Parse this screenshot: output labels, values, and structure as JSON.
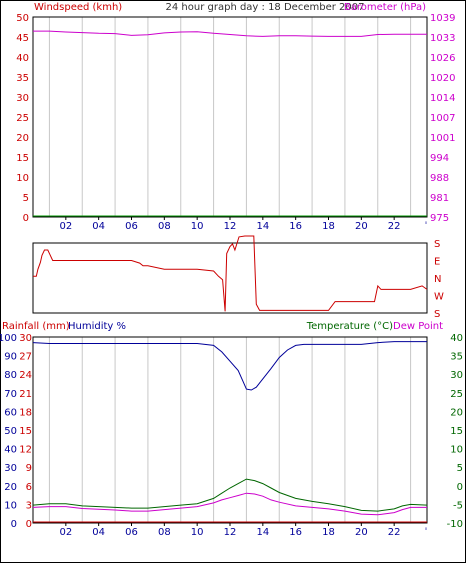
{
  "title": "24 hour graph day : 18 December 2007",
  "colors": {
    "windspeed": "#cc0000",
    "barometer": "#cc00cc",
    "humidity": "#000099",
    "temperature": "#006600",
    "dew_point": "#cc00cc",
    "rainfall": "#cc0000",
    "wind_direction": "#cc0000",
    "wind_trace": "#009900",
    "grid": "#c8c8c8",
    "frame": "#000000"
  },
  "x_ticks": [
    "02",
    "04",
    "06",
    "08",
    "10",
    "12",
    "14",
    "16",
    "18",
    "20",
    "22"
  ],
  "chart_data": [
    {
      "type": "line",
      "title": "24 hour graph day : 18 December 2007",
      "grid": true,
      "x_label": "",
      "left_axis": {
        "label": "Windspeed (kmh)",
        "range": [
          0,
          50
        ],
        "ticks": [
          "50",
          "45",
          "40",
          "35",
          "30",
          "25",
          "20",
          "15",
          "10",
          "5",
          "0"
        ]
      },
      "right_axis": {
        "label": "Barometer (hPa)",
        "range": [
          975,
          1039
        ],
        "ticks": [
          "1039",
          "1033",
          "1026",
          "1020",
          "1014",
          "1007",
          "1001",
          "994",
          "988",
          "981",
          "975"
        ]
      },
      "series": [
        {
          "name": "Windspeed (kmh)",
          "axis": "left",
          "x": [
            0,
            24
          ],
          "y": [
            0,
            0
          ]
        },
        {
          "name": "Barometer (hPa)",
          "axis": "right",
          "x": [
            0,
            1,
            2,
            3,
            4,
            5,
            6,
            7,
            8,
            9,
            10,
            11,
            12,
            13,
            14,
            15,
            16,
            17,
            18,
            19,
            20,
            21,
            22,
            23,
            24
          ],
          "y": [
            1034.5,
            1034.5,
            1034.2,
            1034.0,
            1033.8,
            1033.7,
            1033.1,
            1033.3,
            1033.9,
            1034.2,
            1034.3,
            1033.8,
            1033.4,
            1033.0,
            1032.8,
            1033.0,
            1033.0,
            1032.9,
            1032.8,
            1032.8,
            1032.8,
            1033.4,
            1033.5,
            1033.5,
            1033.5
          ]
        }
      ]
    },
    {
      "type": "line",
      "title": "",
      "grid": false,
      "left_axis": null,
      "right_axis": {
        "label": "",
        "categories": [
          "S",
          "E",
          "N",
          "W",
          "S"
        ]
      },
      "series": [
        {
          "name": "",
          "x": [
            0,
            0.2,
            0.3,
            0.45,
            0.55,
            0.7,
            0.9,
            1.2,
            2,
            4,
            6,
            6.5,
            6.7,
            7,
            8,
            9,
            10,
            11,
            11.3,
            11.55,
            11.7,
            11.8,
            12.0,
            12.15,
            12.3,
            12.55,
            12.9,
            13.15,
            13.45,
            13.6,
            13.8,
            14,
            16,
            18,
            18.4,
            19,
            20,
            20.8,
            21,
            21.2,
            22,
            23,
            23.7,
            24
          ],
          "y": [
            2.1,
            2.1,
            2.5,
            2.9,
            3.3,
            3.6,
            3.6,
            3.0,
            3.0,
            3.0,
            3.0,
            2.85,
            2.7,
            2.7,
            2.5,
            2.5,
            2.5,
            2.4,
            2.1,
            1.9,
            0.1,
            3.4,
            3.8,
            3.95,
            3.6,
            4.35,
            4.4,
            4.4,
            4.4,
            0.5,
            0.15,
            0.15,
            0.15,
            0.15,
            0.65,
            0.65,
            0.65,
            0.65,
            1.55,
            1.35,
            1.35,
            1.35,
            1.55,
            1.35
          ]
        }
      ]
    },
    {
      "type": "line",
      "title": "",
      "grid": true,
      "left_axis_rainfall": {
        "label": "Rainfall (mm)",
        "range": [
          0,
          30
        ],
        "ticks": [
          "30",
          "27",
          "24",
          "21",
          "18",
          "15",
          "12",
          "9",
          "6",
          "3",
          "0"
        ]
      },
      "left_axis_humidity": {
        "label": "Humidity %",
        "range": [
          0,
          100
        ],
        "ticks": [
          "100",
          "90",
          "80",
          "70",
          "60",
          "50",
          "40",
          "30",
          "20",
          "10",
          "0"
        ]
      },
      "right_axis": {
        "label": "Temperature (°C)",
        "range": [
          -10,
          40
        ],
        "ticks": [
          "40",
          "35",
          "30",
          "25",
          "20",
          "15",
          "10",
          "5",
          "0",
          "-5",
          "-10"
        ]
      },
      "right_axis_title_2": "Dew Point",
      "series": [
        {
          "name": "Humidity %",
          "axis": "humidity",
          "x": [
            0,
            1,
            2,
            3,
            4,
            5,
            6,
            7,
            8,
            9,
            10,
            11,
            11.5,
            12,
            12.5,
            12.8,
            13,
            13.3,
            13.6,
            14,
            14.5,
            15,
            15.5,
            16,
            16.5,
            17,
            18,
            19,
            20,
            21,
            22,
            23,
            24
          ],
          "y": [
            97,
            96.5,
            96.5,
            96.5,
            96.5,
            96.5,
            96.5,
            96.5,
            96.5,
            96.5,
            96.5,
            95.5,
            92,
            87,
            82,
            76,
            72,
            71.5,
            73,
            77.5,
            83,
            89,
            93,
            95.5,
            96,
            96,
            96,
            96,
            96,
            97,
            97.5,
            97.5,
            97.5
          ]
        },
        {
          "name": "Temperature (°C)",
          "axis": "right",
          "x": [
            0,
            1,
            2,
            3,
            4,
            5,
            6,
            7,
            8,
            9,
            10,
            11,
            11.5,
            12,
            12.5,
            13,
            13.5,
            14,
            14.5,
            15,
            16,
            17,
            18,
            19,
            20,
            21,
            22,
            22.5,
            23,
            24
          ],
          "y": [
            -5.2,
            -4.8,
            -4.8,
            -5.4,
            -5.6,
            -5.8,
            -6.0,
            -6.0,
            -5.6,
            -5.2,
            -4.8,
            -3.4,
            -2.0,
            -0.6,
            0.6,
            1.8,
            1.4,
            0.6,
            -0.6,
            -1.8,
            -3.4,
            -4.2,
            -4.8,
            -5.6,
            -6.6,
            -6.8,
            -6.2,
            -5.4,
            -5.0,
            -5.2
          ]
        },
        {
          "name": "Dew Point",
          "axis": "right",
          "x": [
            0,
            1,
            2,
            3,
            4,
            5,
            6,
            7,
            8,
            9,
            10,
            11,
            11.5,
            12,
            12.5,
            13,
            13.5,
            14,
            14.5,
            15,
            16,
            17,
            18,
            19,
            20,
            21,
            22,
            22.5,
            23,
            24
          ],
          "y": [
            -5.8,
            -5.6,
            -5.6,
            -6.1,
            -6.3,
            -6.5,
            -6.8,
            -6.8,
            -6.4,
            -6.0,
            -5.6,
            -4.6,
            -3.8,
            -3.2,
            -2.6,
            -2.0,
            -2.2,
            -2.8,
            -3.8,
            -4.4,
            -5.4,
            -5.8,
            -6.2,
            -6.8,
            -7.6,
            -7.8,
            -7.2,
            -6.4,
            -5.8,
            -5.8
          ]
        },
        {
          "name": "Rainfall (mm)",
          "axis": "rainfall",
          "x": [
            0,
            24
          ],
          "y": [
            0,
            0
          ]
        }
      ]
    }
  ]
}
